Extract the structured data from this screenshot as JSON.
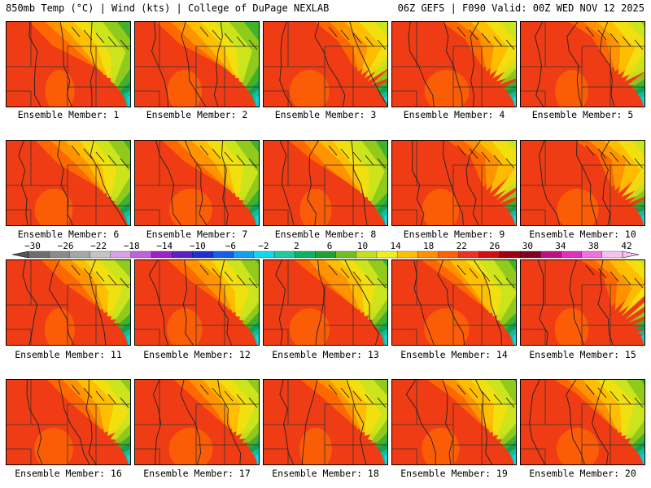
{
  "header": {
    "left": "850mb Temp (°C) | Wind (kts) | College of DuPage NEXLAB",
    "right": "06Z GEFS | F090 Valid: 00Z WED NOV 12 2025"
  },
  "panels": [
    {
      "label": "Ensemble Member: 1"
    },
    {
      "label": "Ensemble Member: 2"
    },
    {
      "label": "Ensemble Member: 3"
    },
    {
      "label": "Ensemble Member: 4"
    },
    {
      "label": "Ensemble Member: 5"
    },
    {
      "label": "Ensemble Member: 6"
    },
    {
      "label": "Ensemble Member: 7"
    },
    {
      "label": "Ensemble Member: 8"
    },
    {
      "label": "Ensemble Member: 9"
    },
    {
      "label": "Ensemble Member: 10"
    },
    {
      "label": "Ensemble Member: 11"
    },
    {
      "label": "Ensemble Member: 12"
    },
    {
      "label": "Ensemble Member: 13"
    },
    {
      "label": "Ensemble Member: 14"
    },
    {
      "label": "Ensemble Member: 15"
    },
    {
      "label": "Ensemble Member: 16"
    },
    {
      "label": "Ensemble Member: 17"
    },
    {
      "label": "Ensemble Member: 18"
    },
    {
      "label": "Ensemble Member: 19"
    },
    {
      "label": "Ensemble Member: 20"
    }
  ],
  "colorbar": {
    "ticks": [
      "−30",
      "−26",
      "−22",
      "−18",
      "−14",
      "−10",
      "−6",
      "−2",
      "2",
      "6",
      "10",
      "14",
      "18",
      "22",
      "26",
      "30",
      "34",
      "38",
      "42"
    ],
    "colors": [
      "#6e6e6e",
      "#8a8a8a",
      "#a6a6a6",
      "#c4c4c4",
      "#dca0e6",
      "#c060e0",
      "#a020c8",
      "#6020c0",
      "#2030d0",
      "#1060e8",
      "#10a0f0",
      "#10d8f0",
      "#20c8a0",
      "#10b060",
      "#20a030",
      "#70c020",
      "#c0e020",
      "#f0f020",
      "#ffc000",
      "#ff9000",
      "#ff6000",
      "#f03020",
      "#d01010",
      "#a00010",
      "#800020",
      "#c01080",
      "#e030c0",
      "#f070e0",
      "#f8c0f0"
    ]
  }
}
